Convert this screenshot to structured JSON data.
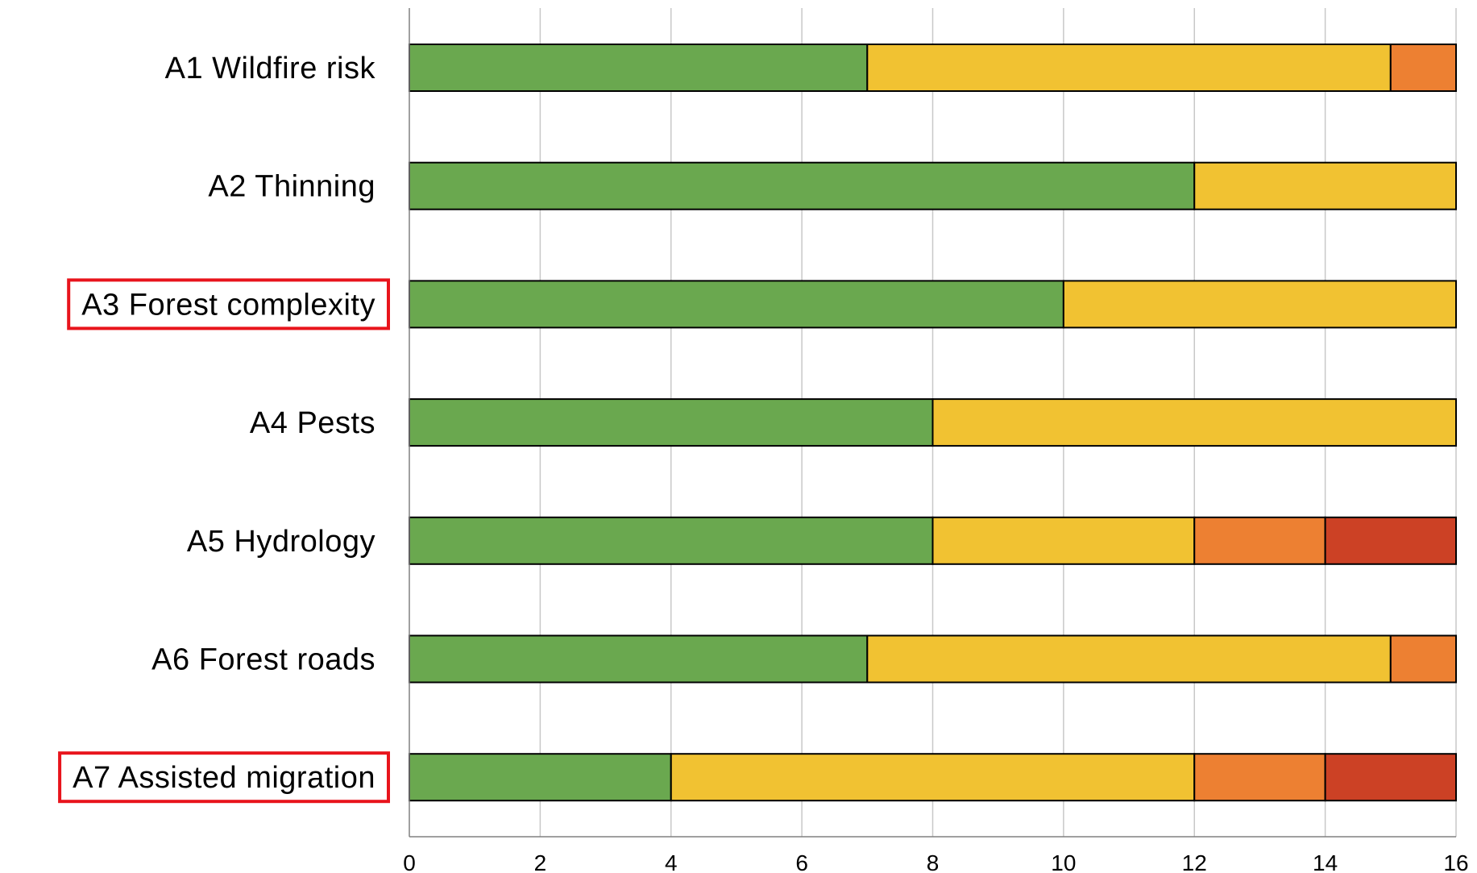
{
  "chart_data": {
    "type": "bar",
    "orientation": "horizontal",
    "stacked": true,
    "title": "",
    "xlabel": "",
    "ylabel": "",
    "xlim": [
      0,
      16
    ],
    "x_ticks": [
      0,
      2,
      4,
      6,
      8,
      10,
      12,
      14,
      16
    ],
    "grid": "vertical",
    "legend": "none",
    "categories": [
      "A1 Wildfire risk",
      "A2 Thinning",
      "A3 Forest complexity",
      "A4 Pests",
      "A5 Hydrology",
      "A6 Forest roads",
      "A7 Assisted migration"
    ],
    "highlighted_categories": [
      "A3 Forest complexity",
      "A7 Assisted migration"
    ],
    "highlight_color": "#e8141c",
    "series": [
      {
        "color": "#6aa84f",
        "values": [
          7,
          12,
          10,
          8,
          8,
          7,
          4
        ]
      },
      {
        "color": "#f1c232",
        "values": [
          8,
          4,
          6,
          8,
          4,
          8,
          8
        ]
      },
      {
        "color": "#ed8032",
        "values": [
          1,
          0,
          0,
          0,
          2,
          1,
          2
        ]
      },
      {
        "color": "#cc4125",
        "values": [
          0,
          0,
          0,
          0,
          2,
          0,
          2
        ]
      }
    ]
  }
}
